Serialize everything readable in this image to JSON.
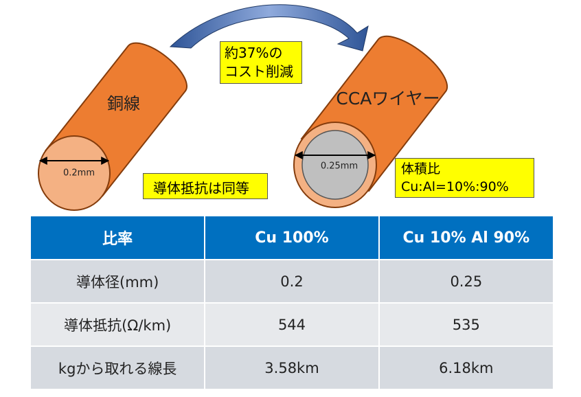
{
  "diagram": {
    "copper_label": "銅線",
    "copper_diameter": "0.2mm",
    "cca_label": "CCAワイヤー",
    "cca_diameter": "0.25mm",
    "cost_note": [
      "約37%の",
      "コスト削減"
    ],
    "resistance_note": "導体抵抗は同等",
    "volume_note": [
      "体積比",
      "Cu:Al=10%:90%"
    ]
  },
  "table": {
    "header": [
      "比率",
      "Cu 100%",
      "Cu 10% Al 90%"
    ],
    "rows": [
      [
        "導体径(mm)",
        "0.2",
        "0.25"
      ],
      [
        "導体抵抗(Ω/km)",
        "544",
        "535"
      ],
      [
        "kgから取れる線長",
        "3.58km",
        "6.18km"
      ]
    ]
  }
}
